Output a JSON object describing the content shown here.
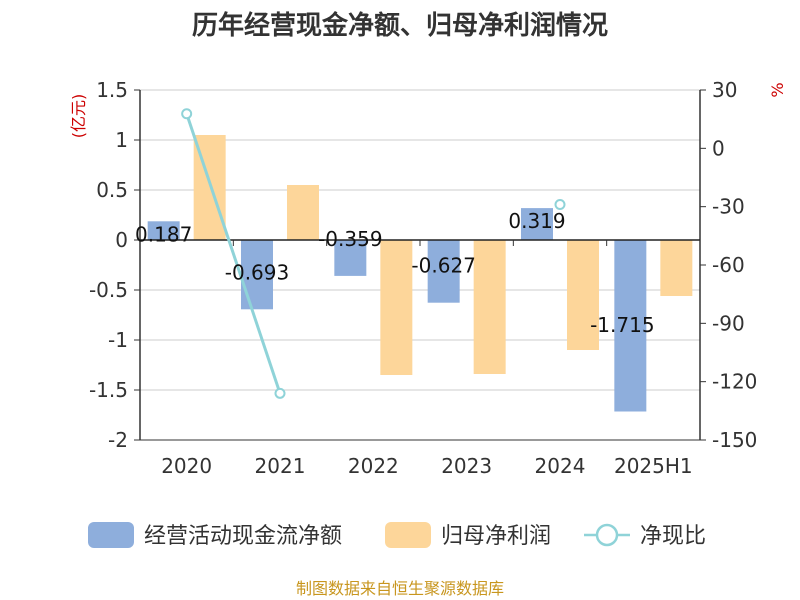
{
  "chart_data": {
    "type": "bar",
    "title": "历年经营现金净额、归母净利润情况",
    "categories": [
      "2020",
      "2021",
      "2022",
      "2023",
      "2024",
      "2025H1"
    ],
    "left_axis": {
      "unit": "(亿元)",
      "ylim": [
        -2,
        1.5
      ],
      "ticks": [
        "1.5",
        "1",
        "0.5",
        "0",
        "-0.5",
        "-1",
        "-1.5",
        "-2"
      ],
      "tick_values": [
        1.5,
        1,
        0.5,
        0,
        -0.5,
        -1,
        -1.5,
        -2
      ]
    },
    "right_axis": {
      "unit": "%",
      "ylim": [
        -150,
        30
      ],
      "ticks": [
        "30",
        "0",
        "-30",
        "-60",
        "-90",
        "-120",
        "-150"
      ],
      "tick_values": [
        30,
        0,
        -30,
        -60,
        -90,
        -120,
        -150
      ]
    },
    "grid": true,
    "series": [
      {
        "name": "经营活动现金流净额",
        "kind": "bar",
        "axis": "left",
        "color": "#8eaedc",
        "values": [
          0.187,
          -0.693,
          -0.359,
          -0.627,
          0.319,
          -1.715
        ],
        "labels": [
          "0.187",
          "-0.693",
          "-0.359",
          "-0.627",
          "0.319",
          "-1.715"
        ]
      },
      {
        "name": "归母净利润",
        "kind": "bar",
        "axis": "left",
        "color": "#fdd69a",
        "values": [
          1.05,
          0.55,
          -1.35,
          -1.34,
          -1.1,
          -0.56
        ]
      },
      {
        "name": "净现比",
        "kind": "line",
        "axis": "right",
        "color": "#8fd3d8",
        "values": [
          17.8,
          -126,
          null,
          null,
          -28.9,
          null
        ]
      }
    ],
    "legend_position": "bottom"
  },
  "source": "制图数据来自恒生聚源数据库"
}
